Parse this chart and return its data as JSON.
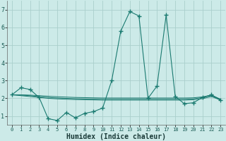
{
  "xlabel": "Humidex (Indice chaleur)",
  "background_color": "#cceae8",
  "grid_color": "#aacfcc",
  "line_color": "#1a7a70",
  "xlim": [
    -0.5,
    23.5
  ],
  "ylim": [
    0.5,
    7.5
  ],
  "yticks": [
    1,
    2,
    3,
    4,
    5,
    6,
    7
  ],
  "xticks": [
    0,
    1,
    2,
    3,
    4,
    5,
    6,
    7,
    8,
    9,
    10,
    11,
    12,
    13,
    14,
    15,
    16,
    17,
    18,
    19,
    20,
    21,
    22,
    23
  ],
  "series": [
    {
      "x": [
        0,
        1,
        2,
        3,
        4,
        5,
        6,
        7,
        8,
        9,
        10,
        11,
        12,
        13,
        14,
        15,
        16,
        17,
        18,
        19,
        20,
        21,
        22,
        23
      ],
      "y": [
        2.2,
        2.6,
        2.5,
        2.05,
        0.85,
        0.75,
        1.2,
        0.9,
        1.15,
        1.25,
        1.45,
        3.0,
        5.8,
        6.9,
        6.65,
        2.0,
        2.7,
        6.7,
        2.1,
        1.7,
        1.75,
        2.05,
        2.2,
        1.9
      ],
      "marker": "+"
    },
    {
      "x": [
        0,
        1,
        2,
        3,
        4,
        5,
        6,
        7,
        8,
        9,
        10,
        11,
        12,
        13,
        14,
        15,
        16,
        17,
        18,
        19,
        20,
        21,
        22,
        23
      ],
      "y": [
        2.2,
        2.15,
        2.1,
        2.05,
        2.0,
        1.97,
        1.95,
        1.93,
        1.92,
        1.91,
        1.9,
        1.9,
        1.9,
        1.9,
        1.9,
        1.9,
        1.9,
        1.9,
        1.9,
        1.9,
        1.92,
        1.98,
        2.1,
        1.9
      ],
      "marker": null
    },
    {
      "x": [
        0,
        1,
        2,
        3,
        4,
        5,
        6,
        7,
        8,
        9,
        10,
        11,
        12,
        13,
        14,
        15,
        16,
        17,
        18,
        19,
        20,
        21,
        22,
        23
      ],
      "y": [
        2.2,
        2.18,
        2.15,
        2.1,
        2.05,
        2.02,
        2.0,
        1.98,
        1.97,
        1.96,
        1.95,
        1.95,
        1.95,
        1.95,
        1.95,
        1.95,
        1.95,
        1.95,
        1.95,
        1.95,
        1.97,
        2.05,
        2.15,
        1.92
      ],
      "marker": null
    },
    {
      "x": [
        0,
        1,
        2,
        3,
        4,
        5,
        6,
        7,
        8,
        9,
        10,
        11,
        12,
        13,
        14,
        15,
        16,
        17,
        18,
        19,
        20,
        21,
        22,
        23
      ],
      "y": [
        2.2,
        2.2,
        2.18,
        2.15,
        2.12,
        2.09,
        2.07,
        2.05,
        2.04,
        2.03,
        2.02,
        2.02,
        2.02,
        2.02,
        2.02,
        2.02,
        2.02,
        2.02,
        2.02,
        2.02,
        2.03,
        2.08,
        2.18,
        1.95
      ],
      "marker": null
    }
  ]
}
